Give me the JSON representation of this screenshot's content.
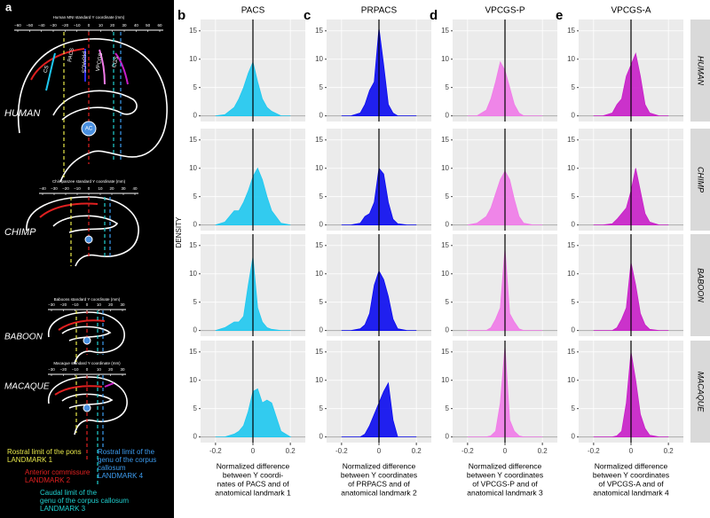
{
  "diagram": {
    "letter": "a",
    "species": [
      {
        "name": "HUMAN",
        "axis_title": "Human MNI standard Y coordinate (mm)",
        "ticks": [
          "−60",
          "−50",
          "−40",
          "−30",
          "−20",
          "−10",
          "0",
          "10",
          "20",
          "30",
          "40",
          "50",
          "60"
        ]
      },
      {
        "name": "CHIMP",
        "axis_title": "Chimpanzee standard Y coordinate (mm)",
        "ticks": [
          "−40",
          "−30",
          "−20",
          "−10",
          "0",
          "10",
          "20",
          "30",
          "40"
        ]
      },
      {
        "name": "BABOON",
        "axis_title": "Baboons standard Y coordinate (mm)",
        "ticks": [
          "−30",
          "−20",
          "−10",
          "0",
          "10",
          "20",
          "30"
        ]
      },
      {
        "name": "MACAQUE",
        "axis_title": "Macaque standard Y coordinate (mm)",
        "ticks": [
          "−30",
          "−20",
          "−10",
          "0",
          "10",
          "20",
          "30"
        ]
      }
    ],
    "sulci": [
      "CS",
      "PACS",
      "PRPACS",
      "VPCGS",
      "CGS"
    ],
    "ac": "AC",
    "legend": [
      {
        "lines": [
          "Rostral limit of the pons",
          "LANDMARK 1"
        ],
        "color": "#e8e84a"
      },
      {
        "lines": [
          "Anterior commissure",
          "LANDMARK 2"
        ],
        "color": "#e02020"
      },
      {
        "lines": [
          "Rostral limit of the",
          "genu of the corpus",
          "callosum",
          "LANDMARK 4"
        ],
        "color": "#3c9cf0"
      },
      {
        "lines": [
          "Caudal limit of the",
          "genu of the corpus callosum",
          "LANDMARK 3"
        ],
        "color": "#20d0d0"
      }
    ]
  },
  "chart_data": {
    "type": "density",
    "ylabel": "DENSITY",
    "rows": [
      "HUMAN",
      "CHIMP",
      "BABOON",
      "MACAQUE"
    ],
    "xlim": [
      -0.28,
      0.28
    ],
    "xticks": [
      -0.2,
      0,
      0.2
    ],
    "ylim": [
      -1,
      17
    ],
    "yticks": [
      0,
      5,
      10,
      15
    ],
    "grid": true,
    "x": [
      -0.2,
      -0.15,
      -0.1,
      -0.075,
      -0.05,
      -0.025,
      0,
      0.025,
      0.05,
      0.075,
      0.1,
      0.15,
      0.2
    ],
    "panels": [
      {
        "letter": "b",
        "title": "PACS",
        "color": "#1ec8f0",
        "xlabel": [
          "Normalized difference",
          "between Y coordi-",
          "nates of PACS and of",
          "anatomical landmark 1"
        ],
        "densities": [
          [
            0,
            0.2,
            1.5,
            3,
            5,
            7.5,
            9.5,
            6,
            3,
            1.5,
            0.8,
            0,
            0
          ],
          [
            0,
            0.5,
            2.5,
            2.5,
            4,
            6,
            8.5,
            10,
            8,
            5,
            2.5,
            0.3,
            0
          ],
          [
            0,
            0.5,
            1.5,
            1.5,
            2.5,
            8,
            13,
            4,
            1.5,
            0.5,
            0.2,
            0,
            0
          ],
          [
            0,
            0,
            0.5,
            1,
            2,
            4.5,
            8,
            8.5,
            6,
            6.5,
            6,
            1,
            0
          ]
        ]
      },
      {
        "letter": "c",
        "title": "PRPACS",
        "color": "#0a0af0",
        "xlabel": [
          "Normalized difference",
          "between Y coordinates",
          "of PRPACS and of",
          "anatomical landmark 2"
        ],
        "densities": [
          [
            0,
            0,
            0.5,
            2,
            4.5,
            6,
            15.5,
            9,
            2,
            0.5,
            0,
            0,
            0
          ],
          [
            0,
            0,
            0.3,
            1.5,
            2,
            4,
            10,
            9,
            4,
            1,
            0.2,
            0,
            0
          ],
          [
            0,
            0,
            0.3,
            1,
            3,
            8,
            10.5,
            9,
            6,
            2,
            0.3,
            0,
            0
          ],
          [
            0,
            0,
            0,
            0.5,
            2,
            4,
            6,
            8,
            9.5,
            3,
            0,
            0,
            0
          ]
        ]
      },
      {
        "letter": "d",
        "title": "VPCGS-P",
        "color": "#f07ae8",
        "xlabel": [
          "Normalized difference",
          "between Y coordinates",
          "of VPCGS-P and of",
          "anatomical landmark 3"
        ],
        "densities": [
          [
            0,
            0,
            1,
            3,
            6,
            9.5,
            8,
            5,
            2,
            0.5,
            0,
            0,
            0
          ],
          [
            0,
            0.3,
            1.5,
            3,
            5.5,
            8,
            9.5,
            8,
            4.5,
            1.5,
            0.3,
            0,
            0
          ],
          [
            0,
            0,
            0,
            0.5,
            2,
            4,
            14.5,
            3,
            1.5,
            0.3,
            0,
            0,
            0
          ],
          [
            0,
            0,
            0,
            0.2,
            1,
            6,
            16,
            3,
            1,
            0.2,
            0,
            0,
            0
          ]
        ]
      },
      {
        "letter": "e",
        "title": "VPCGS-A",
        "color": "#c81ec8",
        "xlabel": [
          "Normalized difference",
          "between Y coordinates",
          "of VPCGS-A and of",
          "anatomical landmark 4"
        ],
        "densities": [
          [
            0,
            0,
            0.5,
            2,
            3,
            7,
            9,
            11,
            7,
            2,
            0.5,
            0,
            0
          ],
          [
            0,
            0,
            0.2,
            1,
            2,
            3,
            6,
            10,
            6,
            2,
            0.5,
            0,
            0
          ],
          [
            0,
            0,
            0,
            0.5,
            2,
            4,
            12,
            8,
            3,
            1,
            0.2,
            0,
            0
          ],
          [
            0,
            0,
            0,
            0.2,
            1,
            6,
            15,
            10,
            4,
            1.5,
            0.3,
            0,
            0
          ]
        ]
      }
    ]
  }
}
